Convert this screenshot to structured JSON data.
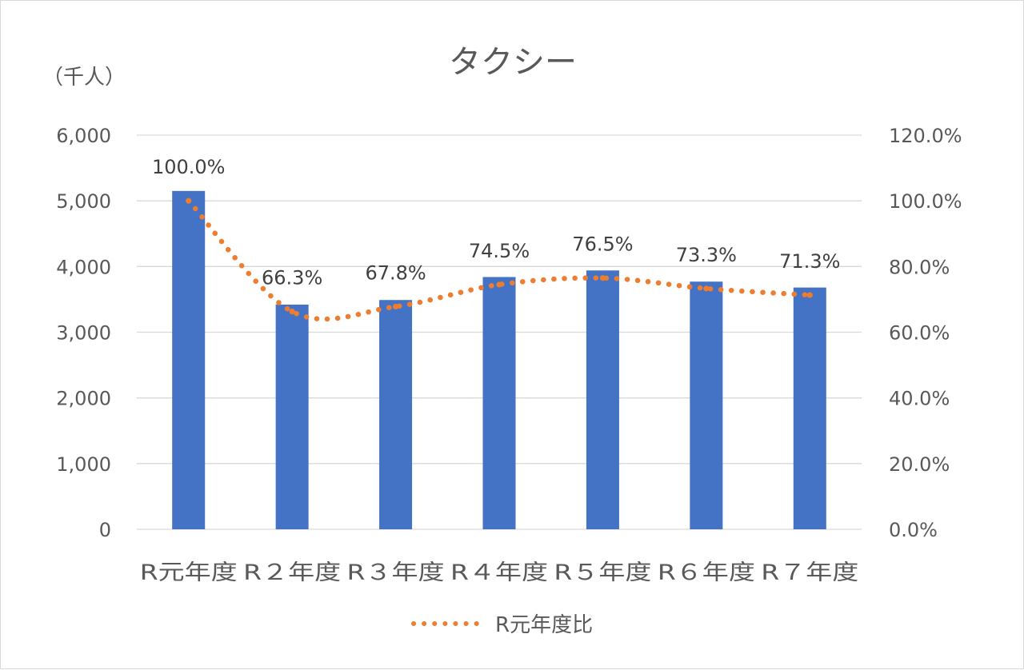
{
  "chart_data": {
    "type": "bar",
    "title": "タクシー",
    "y_unit_label": "（千人）",
    "categories": [
      "R元年度",
      "R２年度",
      "R３年度",
      "R４年度",
      "R５年度",
      "R６年度",
      "R７年度"
    ],
    "series": [
      {
        "type": "bar",
        "axis": "left",
        "color": "#4472c4",
        "values": [
          5150,
          3420,
          3490,
          3840,
          3940,
          3770,
          3680
        ]
      },
      {
        "type": "line",
        "axis": "right",
        "name": "R元年度比",
        "color": "#ed7d31",
        "line_style": "dotted",
        "values": [
          100.0,
          66.3,
          67.8,
          74.5,
          76.5,
          73.3,
          71.3
        ],
        "data_labels": [
          "100.0%",
          "66.3%",
          "67.8%",
          "74.5%",
          "76.5%",
          "73.3%",
          "71.3%"
        ]
      }
    ],
    "y_left": {
      "min": 0,
      "max": 6000,
      "ticks": [
        "0",
        "1,000",
        "2,000",
        "3,000",
        "4,000",
        "5,000",
        "6,000"
      ]
    },
    "y_right": {
      "min": 0,
      "max": 120,
      "ticks": [
        "0.0%",
        "20.0%",
        "40.0%",
        "60.0%",
        "80.0%",
        "100.0%",
        "120.0%"
      ]
    },
    "grid": true,
    "legend_position": "bottom"
  }
}
